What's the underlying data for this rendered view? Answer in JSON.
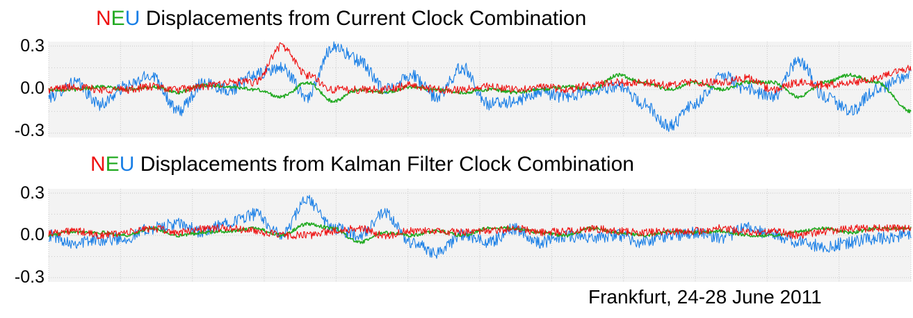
{
  "panels": [
    {
      "title": {
        "n": "N",
        "e": "E",
        "u": "U",
        "rest": " Displacements from Current Clock Combination"
      }
    },
    {
      "title": {
        "n": "N",
        "e": "E",
        "u": "U",
        "rest": " Displacements from Kalman Filter Clock Combination"
      }
    }
  ],
  "footer": "Frankfurt, 24-28 June 2011",
  "colors": {
    "north": "#ee1111",
    "east": "#22aa22",
    "up": "#1a7fe6",
    "grid": "#c8c8c8",
    "plot_bg": "#f3f3f3"
  },
  "chart_data": [
    {
      "type": "line",
      "ylim": [
        -0.33,
        0.33
      ],
      "yticks": [
        "0.3",
        "0.0",
        "-0.3"
      ],
      "ytick_values": [
        0.3,
        0.0,
        -0.3
      ],
      "grid": true,
      "x": [
        0.0,
        0.03,
        0.06,
        0.09,
        0.12,
        0.15,
        0.18,
        0.21,
        0.24,
        0.27,
        0.3,
        0.33,
        0.36,
        0.39,
        0.42,
        0.45,
        0.48,
        0.51,
        0.54,
        0.57,
        0.6,
        0.63,
        0.66,
        0.69,
        0.72,
        0.75,
        0.78,
        0.81,
        0.84,
        0.87,
        0.9,
        0.93,
        0.96,
        1.0
      ],
      "series": [
        {
          "key": "up",
          "values": [
            -0.05,
            0.05,
            -0.1,
            0.02,
            0.1,
            -0.15,
            0.05,
            0.0,
            0.1,
            0.15,
            -0.05,
            0.3,
            0.2,
            0.0,
            0.1,
            -0.05,
            0.15,
            -0.1,
            -0.08,
            -0.02,
            -0.05,
            0.0,
            0.02,
            -0.1,
            -0.25,
            -0.1,
            0.1,
            0.0,
            -0.05,
            0.2,
            -0.05,
            -0.15,
            0.0,
            0.1
          ]
        },
        {
          "key": "east",
          "values": [
            0.0,
            0.0,
            0.02,
            0.0,
            0.02,
            -0.02,
            0.03,
            0.02,
            0.0,
            -0.05,
            0.05,
            -0.08,
            0.0,
            -0.02,
            0.02,
            0.0,
            -0.02,
            0.0,
            -0.02,
            0.0,
            0.02,
            0.0,
            0.1,
            0.05,
            0.0,
            0.05,
            0.0,
            0.05,
            0.05,
            -0.05,
            0.05,
            0.1,
            0.05,
            -0.15
          ]
        },
        {
          "key": "north",
          "values": [
            0.0,
            0.02,
            0.0,
            0.0,
            0.02,
            0.0,
            0.02,
            0.05,
            0.05,
            0.3,
            0.1,
            0.0,
            0.0,
            0.0,
            0.03,
            0.0,
            0.0,
            0.02,
            0.0,
            0.02,
            0.0,
            0.03,
            0.05,
            0.05,
            0.03,
            0.05,
            0.05,
            0.08,
            0.0,
            0.05,
            0.03,
            0.05,
            0.08,
            0.15
          ]
        }
      ]
    },
    {
      "type": "line",
      "ylim": [
        -0.33,
        0.33
      ],
      "yticks": [
        "0.3",
        "0.0",
        "-0.3"
      ],
      "ytick_values": [
        0.3,
        0.0,
        -0.3
      ],
      "grid": true,
      "x": [
        0.0,
        0.03,
        0.06,
        0.09,
        0.12,
        0.15,
        0.18,
        0.21,
        0.24,
        0.27,
        0.3,
        0.33,
        0.36,
        0.39,
        0.42,
        0.45,
        0.48,
        0.51,
        0.54,
        0.57,
        0.6,
        0.63,
        0.66,
        0.69,
        0.72,
        0.75,
        0.78,
        0.81,
        0.84,
        0.87,
        0.9,
        0.93,
        0.96,
        1.0
      ],
      "series": [
        {
          "key": "up",
          "values": [
            0.0,
            -0.05,
            -0.03,
            -0.02,
            0.05,
            0.08,
            0.02,
            0.1,
            0.15,
            0.0,
            0.25,
            0.05,
            0.0,
            0.15,
            -0.05,
            -0.12,
            0.0,
            -0.05,
            0.05,
            -0.05,
            0.0,
            -0.02,
            0.0,
            -0.05,
            0.0,
            0.02,
            -0.02,
            0.05,
            0.0,
            -0.05,
            -0.08,
            -0.05,
            -0.02,
            0.0
          ]
        },
        {
          "key": "east",
          "values": [
            0.0,
            0.03,
            0.02,
            0.0,
            0.05,
            0.0,
            0.02,
            0.03,
            0.05,
            0.0,
            0.08,
            0.05,
            -0.05,
            0.02,
            0.0,
            0.03,
            0.0,
            0.05,
            0.05,
            0.02,
            0.0,
            0.05,
            0.02,
            0.0,
            0.03,
            0.02,
            0.03,
            0.0,
            0.0,
            0.03,
            0.05,
            0.02,
            0.05,
            0.05
          ]
        },
        {
          "key": "north",
          "values": [
            0.02,
            0.03,
            0.0,
            0.02,
            0.05,
            0.02,
            0.05,
            0.05,
            0.03,
            0.0,
            0.0,
            0.03,
            0.05,
            0.0,
            0.03,
            0.03,
            0.02,
            0.03,
            0.05,
            0.02,
            0.03,
            0.05,
            0.03,
            0.02,
            0.03,
            0.03,
            0.05,
            0.02,
            0.03,
            0.0,
            0.03,
            0.05,
            0.05,
            0.05
          ]
        }
      ]
    }
  ]
}
